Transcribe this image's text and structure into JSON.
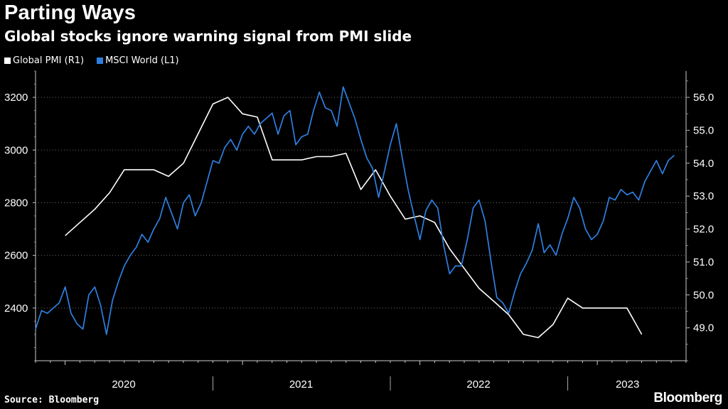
{
  "header": {
    "title": "Parting Ways",
    "subtitle": "Global stocks ignore warning signal from PMI slide"
  },
  "legend": [
    {
      "label": "Global PMI (R1)",
      "color": "#ffffff"
    },
    {
      "label": "MSCI World  (L1)",
      "color": "#2f7fe0"
    }
  ],
  "footer": {
    "source": "Source: Bloomberg",
    "brand": "Bloomberg"
  },
  "chart_data": {
    "type": "line",
    "title": "Parting Ways",
    "subtitle": "Global stocks ignore warning signal from PMI slide",
    "xlabel": "",
    "x_range": [
      2019.833,
      2023.5
    ],
    "x_tick_labels": [
      "2020",
      "2021",
      "2022",
      "2023"
    ],
    "left_axis": {
      "label": "MSCI World (L1)",
      "ylim": [
        2200,
        3300
      ],
      "ticks": [
        2400,
        2600,
        2800,
        3000,
        3200
      ]
    },
    "right_axis": {
      "label": "Global PMI (R1)",
      "ylim": [
        48.0,
        56.8
      ],
      "ticks": [
        "49.0",
        "50.0",
        "51.0",
        "52.0",
        "53.0",
        "54.0",
        "55.0",
        "56.0"
      ]
    },
    "grid": true,
    "series": [
      {
        "name": "Global PMI",
        "axis": "right",
        "color": "#ffffff",
        "points": [
          [
            2020.0,
            51.8
          ],
          [
            2020.083,
            52.2
          ],
          [
            2020.167,
            52.6
          ],
          [
            2020.25,
            53.1
          ],
          [
            2020.333,
            53.8
          ],
          [
            2020.417,
            53.8
          ],
          [
            2020.5,
            53.8
          ],
          [
            2020.583,
            53.6
          ],
          [
            2020.667,
            54.0
          ],
          [
            2020.75,
            54.9
          ],
          [
            2020.833,
            55.8
          ],
          [
            2020.917,
            56.0
          ],
          [
            2021.0,
            55.5
          ],
          [
            2021.083,
            55.4
          ],
          [
            2021.167,
            54.1
          ],
          [
            2021.25,
            54.1
          ],
          [
            2021.333,
            54.1
          ],
          [
            2021.417,
            54.2
          ],
          [
            2021.5,
            54.2
          ],
          [
            2021.583,
            54.3
          ],
          [
            2021.667,
            53.2
          ],
          [
            2021.75,
            53.8
          ],
          [
            2021.833,
            53.0
          ],
          [
            2021.917,
            52.3
          ],
          [
            2022.0,
            52.4
          ],
          [
            2022.083,
            52.2
          ],
          [
            2022.167,
            51.4
          ],
          [
            2022.25,
            50.8
          ],
          [
            2022.333,
            50.2
          ],
          [
            2022.417,
            49.8
          ],
          [
            2022.5,
            49.4
          ],
          [
            2022.583,
            48.8
          ],
          [
            2022.667,
            48.7
          ],
          [
            2022.75,
            49.1
          ],
          [
            2022.833,
            49.9
          ],
          [
            2022.917,
            49.6
          ],
          [
            2023.0,
            49.6
          ],
          [
            2023.083,
            49.6
          ],
          [
            2023.167,
            49.6
          ],
          [
            2023.25,
            48.8
          ]
        ]
      },
      {
        "name": "MSCI World",
        "axis": "left",
        "color": "#2f7fe0",
        "points": [
          [
            2019.833,
            2320
          ],
          [
            2019.867,
            2390
          ],
          [
            2019.9,
            2380
          ],
          [
            2019.933,
            2400
          ],
          [
            2019.967,
            2420
          ],
          [
            2020.0,
            2480
          ],
          [
            2020.033,
            2380
          ],
          [
            2020.067,
            2340
          ],
          [
            2020.1,
            2320
          ],
          [
            2020.133,
            2450
          ],
          [
            2020.167,
            2480
          ],
          [
            2020.2,
            2410
          ],
          [
            2020.233,
            2300
          ],
          [
            2020.267,
            2430
          ],
          [
            2020.3,
            2500
          ],
          [
            2020.333,
            2560
          ],
          [
            2020.367,
            2600
          ],
          [
            2020.4,
            2630
          ],
          [
            2020.433,
            2680
          ],
          [
            2020.467,
            2650
          ],
          [
            2020.5,
            2700
          ],
          [
            2020.533,
            2740
          ],
          [
            2020.567,
            2820
          ],
          [
            2020.6,
            2760
          ],
          [
            2020.633,
            2700
          ],
          [
            2020.667,
            2800
          ],
          [
            2020.7,
            2830
          ],
          [
            2020.733,
            2750
          ],
          [
            2020.767,
            2800
          ],
          [
            2020.8,
            2880
          ],
          [
            2020.833,
            2960
          ],
          [
            2020.867,
            2950
          ],
          [
            2020.9,
            3010
          ],
          [
            2020.933,
            3040
          ],
          [
            2020.967,
            3000
          ],
          [
            2021.0,
            3060
          ],
          [
            2021.033,
            3090
          ],
          [
            2021.067,
            3060
          ],
          [
            2021.1,
            3100
          ],
          [
            2021.133,
            3120
          ],
          [
            2021.167,
            3140
          ],
          [
            2021.2,
            3060
          ],
          [
            2021.233,
            3130
          ],
          [
            2021.267,
            3150
          ],
          [
            2021.3,
            3020
          ],
          [
            2021.333,
            3050
          ],
          [
            2021.367,
            3060
          ],
          [
            2021.4,
            3150
          ],
          [
            2021.433,
            3220
          ],
          [
            2021.467,
            3160
          ],
          [
            2021.5,
            3150
          ],
          [
            2021.533,
            3090
          ],
          [
            2021.567,
            3240
          ],
          [
            2021.6,
            3180
          ],
          [
            2021.633,
            3120
          ],
          [
            2021.667,
            3040
          ],
          [
            2021.7,
            2970
          ],
          [
            2021.733,
            2930
          ],
          [
            2021.767,
            2820
          ],
          [
            2021.8,
            2920
          ],
          [
            2021.833,
            3020
          ],
          [
            2021.867,
            3100
          ],
          [
            2021.9,
            2970
          ],
          [
            2021.933,
            2850
          ],
          [
            2021.967,
            2750
          ],
          [
            2022.0,
            2660
          ],
          [
            2022.033,
            2770
          ],
          [
            2022.067,
            2810
          ],
          [
            2022.1,
            2780
          ],
          [
            2022.133,
            2640
          ],
          [
            2022.167,
            2530
          ],
          [
            2022.2,
            2560
          ],
          [
            2022.233,
            2560
          ],
          [
            2022.267,
            2660
          ],
          [
            2022.3,
            2780
          ],
          [
            2022.333,
            2810
          ],
          [
            2022.367,
            2730
          ],
          [
            2022.4,
            2580
          ],
          [
            2022.433,
            2440
          ],
          [
            2022.467,
            2420
          ],
          [
            2022.5,
            2380
          ],
          [
            2022.533,
            2460
          ],
          [
            2022.567,
            2530
          ],
          [
            2022.6,
            2570
          ],
          [
            2022.633,
            2620
          ],
          [
            2022.667,
            2720
          ],
          [
            2022.7,
            2610
          ],
          [
            2022.733,
            2640
          ],
          [
            2022.767,
            2600
          ],
          [
            2022.8,
            2680
          ],
          [
            2022.833,
            2740
          ],
          [
            2022.867,
            2820
          ],
          [
            2022.9,
            2780
          ],
          [
            2022.933,
            2700
          ],
          [
            2022.967,
            2660
          ],
          [
            2023.0,
            2680
          ],
          [
            2023.033,
            2730
          ],
          [
            2023.067,
            2820
          ],
          [
            2023.1,
            2810
          ],
          [
            2023.133,
            2850
          ],
          [
            2023.167,
            2830
          ],
          [
            2023.2,
            2840
          ],
          [
            2023.233,
            2810
          ],
          [
            2023.267,
            2880
          ],
          [
            2023.3,
            2920
          ],
          [
            2023.333,
            2960
          ],
          [
            2023.367,
            2910
          ],
          [
            2023.4,
            2960
          ],
          [
            2023.433,
            2980
          ]
        ]
      }
    ]
  }
}
